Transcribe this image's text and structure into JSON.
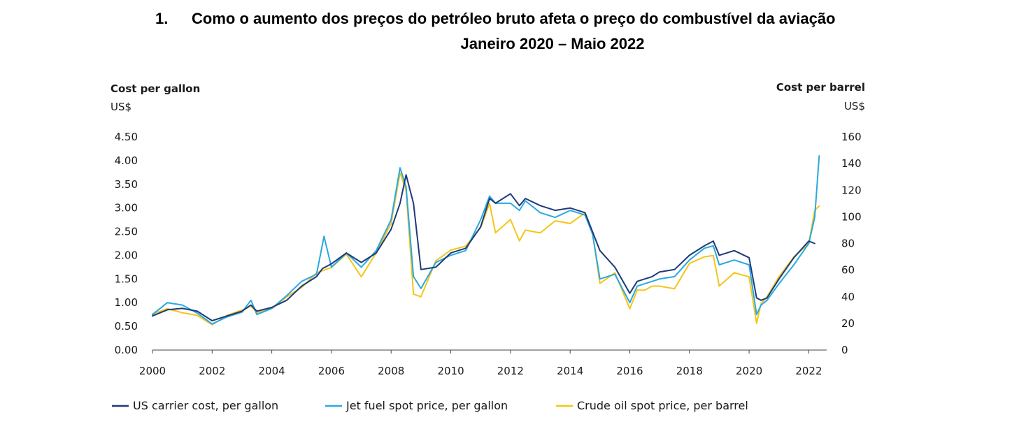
{
  "header": {
    "number": "1.",
    "title_line1": "Como o aumento dos preços do petróleo bruto afeta o preço do combustível da aviação",
    "title_line2": "Janeiro 2020 – Maio 2022"
  },
  "chart_data": {
    "type": "line",
    "title": "Como o aumento dos preços do petróleo bruto afeta o preço do combustível da aviação — Janeiro 2020 – Maio 2022",
    "left_axis": {
      "label": "Cost per gallon",
      "unit": "US$",
      "ylim": [
        0,
        4.5
      ],
      "ticks": [
        "0.00",
        "0.50",
        "1.00",
        "1.50",
        "2.00",
        "2.50",
        "3.00",
        "3.50",
        "4.00",
        "4.50"
      ]
    },
    "right_axis": {
      "label": "Cost per barrel",
      "unit": "US$",
      "ylim": [
        0,
        160
      ],
      "ticks": [
        "0",
        "20",
        "40",
        "60",
        "80",
        "100",
        "120",
        "140",
        "160"
      ]
    },
    "x_axis": {
      "xlim": [
        2000,
        2022.6
      ],
      "ticks": [
        "2000",
        "2002",
        "2004",
        "2006",
        "2008",
        "2010",
        "2012",
        "2014",
        "2016",
        "2018",
        "2020",
        "2022"
      ]
    },
    "grid": false,
    "legend_position": "bottom",
    "series": [
      {
        "name": "US carrier cost, per gallon",
        "axis": "left",
        "color": "#1f3a7a",
        "x": [
          2000.0,
          2000.5,
          2001.0,
          2001.5,
          2002.0,
          2002.5,
          2003.0,
          2003.3,
          2003.5,
          2004.0,
          2004.5,
          2005.0,
          2005.5,
          2005.7,
          2006.0,
          2006.5,
          2007.0,
          2007.5,
          2008.0,
          2008.3,
          2008.5,
          2008.75,
          2009.0,
          2009.5,
          2010.0,
          2010.5,
          2011.0,
          2011.3,
          2011.5,
          2012.0,
          2012.3,
          2012.5,
          2013.0,
          2013.5,
          2014.0,
          2014.5,
          2014.75,
          2015.0,
          2015.5,
          2016.0,
          2016.25,
          2016.5,
          2016.75,
          2017.0,
          2017.5,
          2018.0,
          2018.5,
          2018.8,
          2019.0,
          2019.5,
          2020.0,
          2020.25,
          2020.4,
          2020.6,
          2021.0,
          2021.5,
          2022.0,
          2022.2
        ],
        "values": [
          0.72,
          0.85,
          0.88,
          0.82,
          0.62,
          0.72,
          0.82,
          0.95,
          0.82,
          0.9,
          1.05,
          1.35,
          1.55,
          1.72,
          1.82,
          2.05,
          1.85,
          2.05,
          2.55,
          3.1,
          3.7,
          3.1,
          1.7,
          1.75,
          2.05,
          2.15,
          2.6,
          3.2,
          3.1,
          3.3,
          3.05,
          3.2,
          3.05,
          2.95,
          3.0,
          2.9,
          2.5,
          2.1,
          1.75,
          1.2,
          1.45,
          1.5,
          1.55,
          1.65,
          1.7,
          2.0,
          2.2,
          2.3,
          2.0,
          2.1,
          1.95,
          1.1,
          1.05,
          1.1,
          1.5,
          1.95,
          2.3,
          2.25
        ]
      },
      {
        "name": "Jet fuel spot price, per gallon",
        "axis": "left",
        "color": "#29a9e1",
        "x": [
          2000.0,
          2000.5,
          2001.0,
          2001.5,
          2002.0,
          2002.5,
          2003.0,
          2003.3,
          2003.5,
          2004.0,
          2004.5,
          2005.0,
          2005.5,
          2005.75,
          2006.0,
          2006.5,
          2007.0,
          2007.5,
          2008.0,
          2008.3,
          2008.5,
          2008.75,
          2009.0,
          2009.5,
          2010.0,
          2010.5,
          2011.0,
          2011.3,
          2011.5,
          2012.0,
          2012.3,
          2012.5,
          2013.0,
          2013.5,
          2014.0,
          2014.5,
          2014.75,
          2015.0,
          2015.5,
          2016.0,
          2016.25,
          2016.5,
          2016.75,
          2017.0,
          2017.5,
          2018.0,
          2018.5,
          2018.8,
          2019.0,
          2019.5,
          2020.0,
          2020.25,
          2020.4,
          2020.6,
          2021.0,
          2021.5,
          2022.0,
          2022.2,
          2022.35
        ],
        "values": [
          0.75,
          1.0,
          0.95,
          0.78,
          0.55,
          0.7,
          0.8,
          1.05,
          0.75,
          0.88,
          1.15,
          1.45,
          1.6,
          2.4,
          1.75,
          2.05,
          1.75,
          2.1,
          2.75,
          3.85,
          3.45,
          1.55,
          1.3,
          1.85,
          2.0,
          2.1,
          2.75,
          3.25,
          3.1,
          3.1,
          2.95,
          3.15,
          2.9,
          2.8,
          2.95,
          2.85,
          2.45,
          1.5,
          1.6,
          1.0,
          1.35,
          1.4,
          1.45,
          1.5,
          1.55,
          1.9,
          2.15,
          2.2,
          1.8,
          1.9,
          1.8,
          0.75,
          0.95,
          1.05,
          1.4,
          1.8,
          2.25,
          2.8,
          4.1
        ]
      },
      {
        "name": "Crude oil spot price, per barrel",
        "axis": "right",
        "color": "#f5c518",
        "x": [
          2000.0,
          2000.5,
          2001.0,
          2001.5,
          2002.0,
          2002.5,
          2003.0,
          2003.3,
          2003.5,
          2004.0,
          2004.5,
          2005.0,
          2005.5,
          2006.0,
          2006.5,
          2007.0,
          2007.5,
          2008.0,
          2008.3,
          2008.5,
          2008.75,
          2009.0,
          2009.5,
          2010.0,
          2010.5,
          2011.0,
          2011.3,
          2011.5,
          2012.0,
          2012.3,
          2012.5,
          2013.0,
          2013.5,
          2014.0,
          2014.5,
          2014.75,
          2015.0,
          2015.5,
          2016.0,
          2016.25,
          2016.5,
          2016.75,
          2017.0,
          2017.5,
          2018.0,
          2018.5,
          2018.8,
          2019.0,
          2019.5,
          2020.0,
          2020.25,
          2020.4,
          2020.6,
          2021.0,
          2021.5,
          2022.0,
          2022.2,
          2022.35
        ],
        "values": [
          27,
          31,
          28,
          26,
          19,
          26,
          30,
          33,
          28,
          31,
          40,
          47,
          58,
          62,
          72,
          55,
          73,
          95,
          133,
          120,
          42,
          40,
          67,
          75,
          78,
          92,
          110,
          88,
          98,
          82,
          90,
          88,
          97,
          95,
          103,
          88,
          50,
          58,
          31,
          45,
          45,
          48,
          48,
          46,
          65,
          70,
          71,
          48,
          58,
          55,
          20,
          35,
          40,
          55,
          70,
          80,
          105,
          108
        ]
      }
    ]
  },
  "legend": [
    {
      "label": "US carrier cost, per gallon",
      "color": "#1f3a7a"
    },
    {
      "label": "Jet fuel spot price, per gallon",
      "color": "#29a9e1"
    },
    {
      "label": "Crude oil spot price, per barrel",
      "color": "#f5c518"
    }
  ]
}
